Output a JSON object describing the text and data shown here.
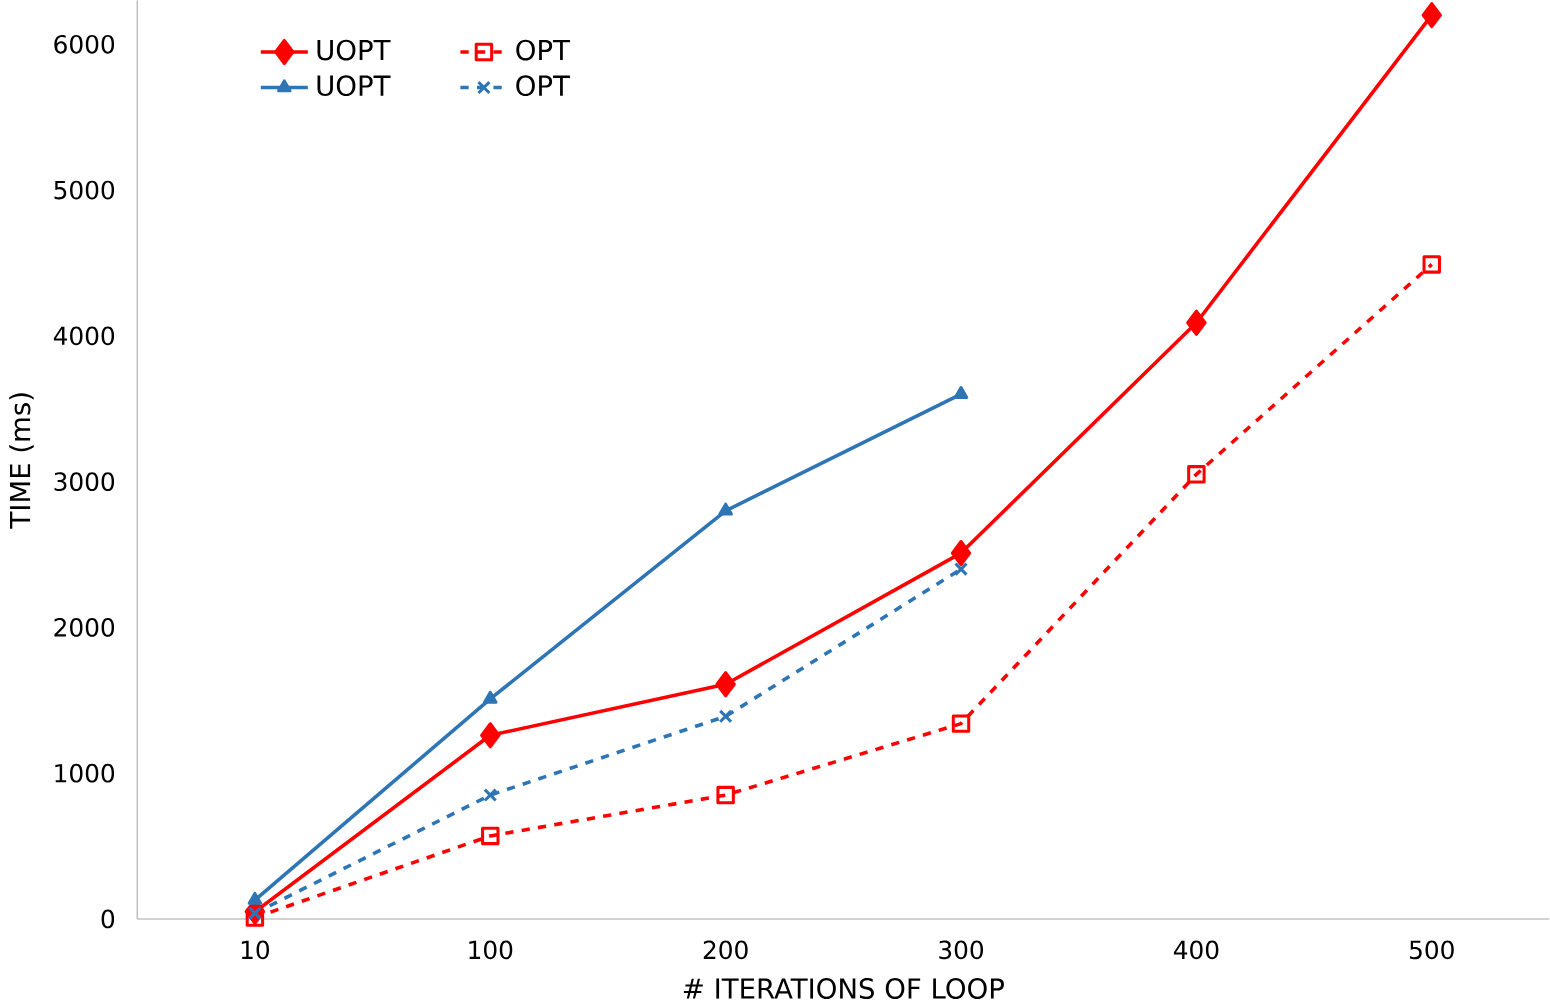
{
  "chart_data": {
    "type": "line",
    "xlabel": "# ITERATIONS OF LOOP",
    "ylabel": "TIME (ms)",
    "categories": [
      "10",
      "100",
      "200",
      "300",
      "400",
      "500"
    ],
    "ylim": [
      0,
      6300
    ],
    "yticks": [
      0,
      1000,
      2000,
      3000,
      4000,
      5000,
      6000
    ],
    "grid": false,
    "legend": "top left",
    "series": [
      {
        "name": "UOPT",
        "color": "#ff0000",
        "marker": "diamond",
        "line_style": "solid",
        "values": [
          50,
          1260,
          1610,
          2510,
          4090,
          6200
        ]
      },
      {
        "name": "OPT",
        "color": "#ff0000",
        "marker": "square",
        "line_style": "dashed",
        "values": [
          10,
          570,
          850,
          1340,
          3050,
          4490
        ]
      },
      {
        "name": "UOPT",
        "color": "#2e75b6",
        "marker": "triangle",
        "line_style": "solid",
        "values": [
          130,
          1510,
          2800,
          3600,
          null,
          null
        ]
      },
      {
        "name": "OPT",
        "color": "#2e75b6",
        "marker": "cross",
        "line_style": "dashed",
        "values": [
          40,
          850,
          1390,
          2400,
          null,
          null
        ]
      }
    ]
  }
}
